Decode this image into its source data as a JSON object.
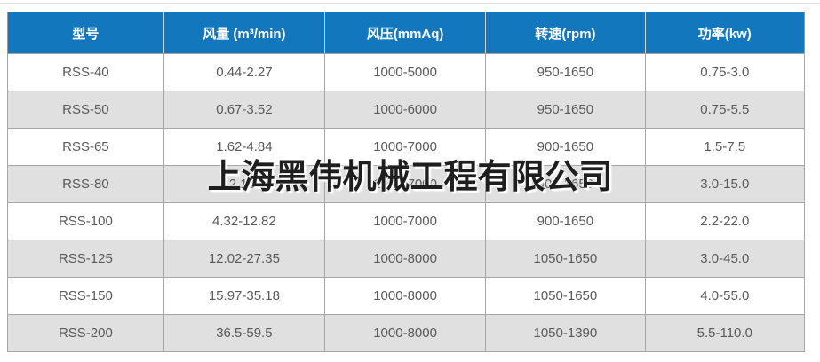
{
  "table": {
    "headers": [
      "型号",
      "风量 (m³/min)",
      "风压(mmAq)",
      "转速(rpm)",
      "功率(kw)"
    ],
    "rows": [
      {
        "cells": [
          "RSS-40",
          "0.44-2.27",
          "1000-5000",
          "950-1650",
          "0.75-3.0"
        ]
      },
      {
        "cells": [
          "RSS-50",
          "0.67-3.52",
          "1000-6000",
          "950-1650",
          "0.75-5.5"
        ]
      },
      {
        "cells": [
          "RSS-65",
          "1.62-4.84",
          "1000-7000",
          "900-1650",
          "1.5-7.5"
        ]
      },
      {
        "cells": [
          "RSS-80",
          "2.15-",
          "1000-7000",
          "900-1650",
          "3.0-15.0"
        ]
      },
      {
        "cells": [
          "RSS-100",
          "4.32-12.82",
          "1000-7000",
          "900-1650",
          "2.2-22.0"
        ]
      },
      {
        "cells": [
          "RSS-125",
          "12.02-27.35",
          "1000-8000",
          "1050-1650",
          "3.0-45.0"
        ]
      },
      {
        "cells": [
          "RSS-150",
          "15.97-35.18",
          "1000-8000",
          "1050-1650",
          "4.0-55.0"
        ]
      },
      {
        "cells": [
          "RSS-200",
          "36.5-59.5",
          "1000-8000",
          "1050-1390",
          "5.5-110.0"
        ]
      }
    ]
  },
  "watermark": {
    "text": "上海黑伟机械工程有限公司"
  },
  "colors": {
    "header_bg": "#1377bd",
    "header_text": "#ffffff",
    "stripe_row": "#e0e0e0",
    "plain_row": "#ffffff",
    "border": "#a6a6a6",
    "cell_text": "#595959"
  }
}
